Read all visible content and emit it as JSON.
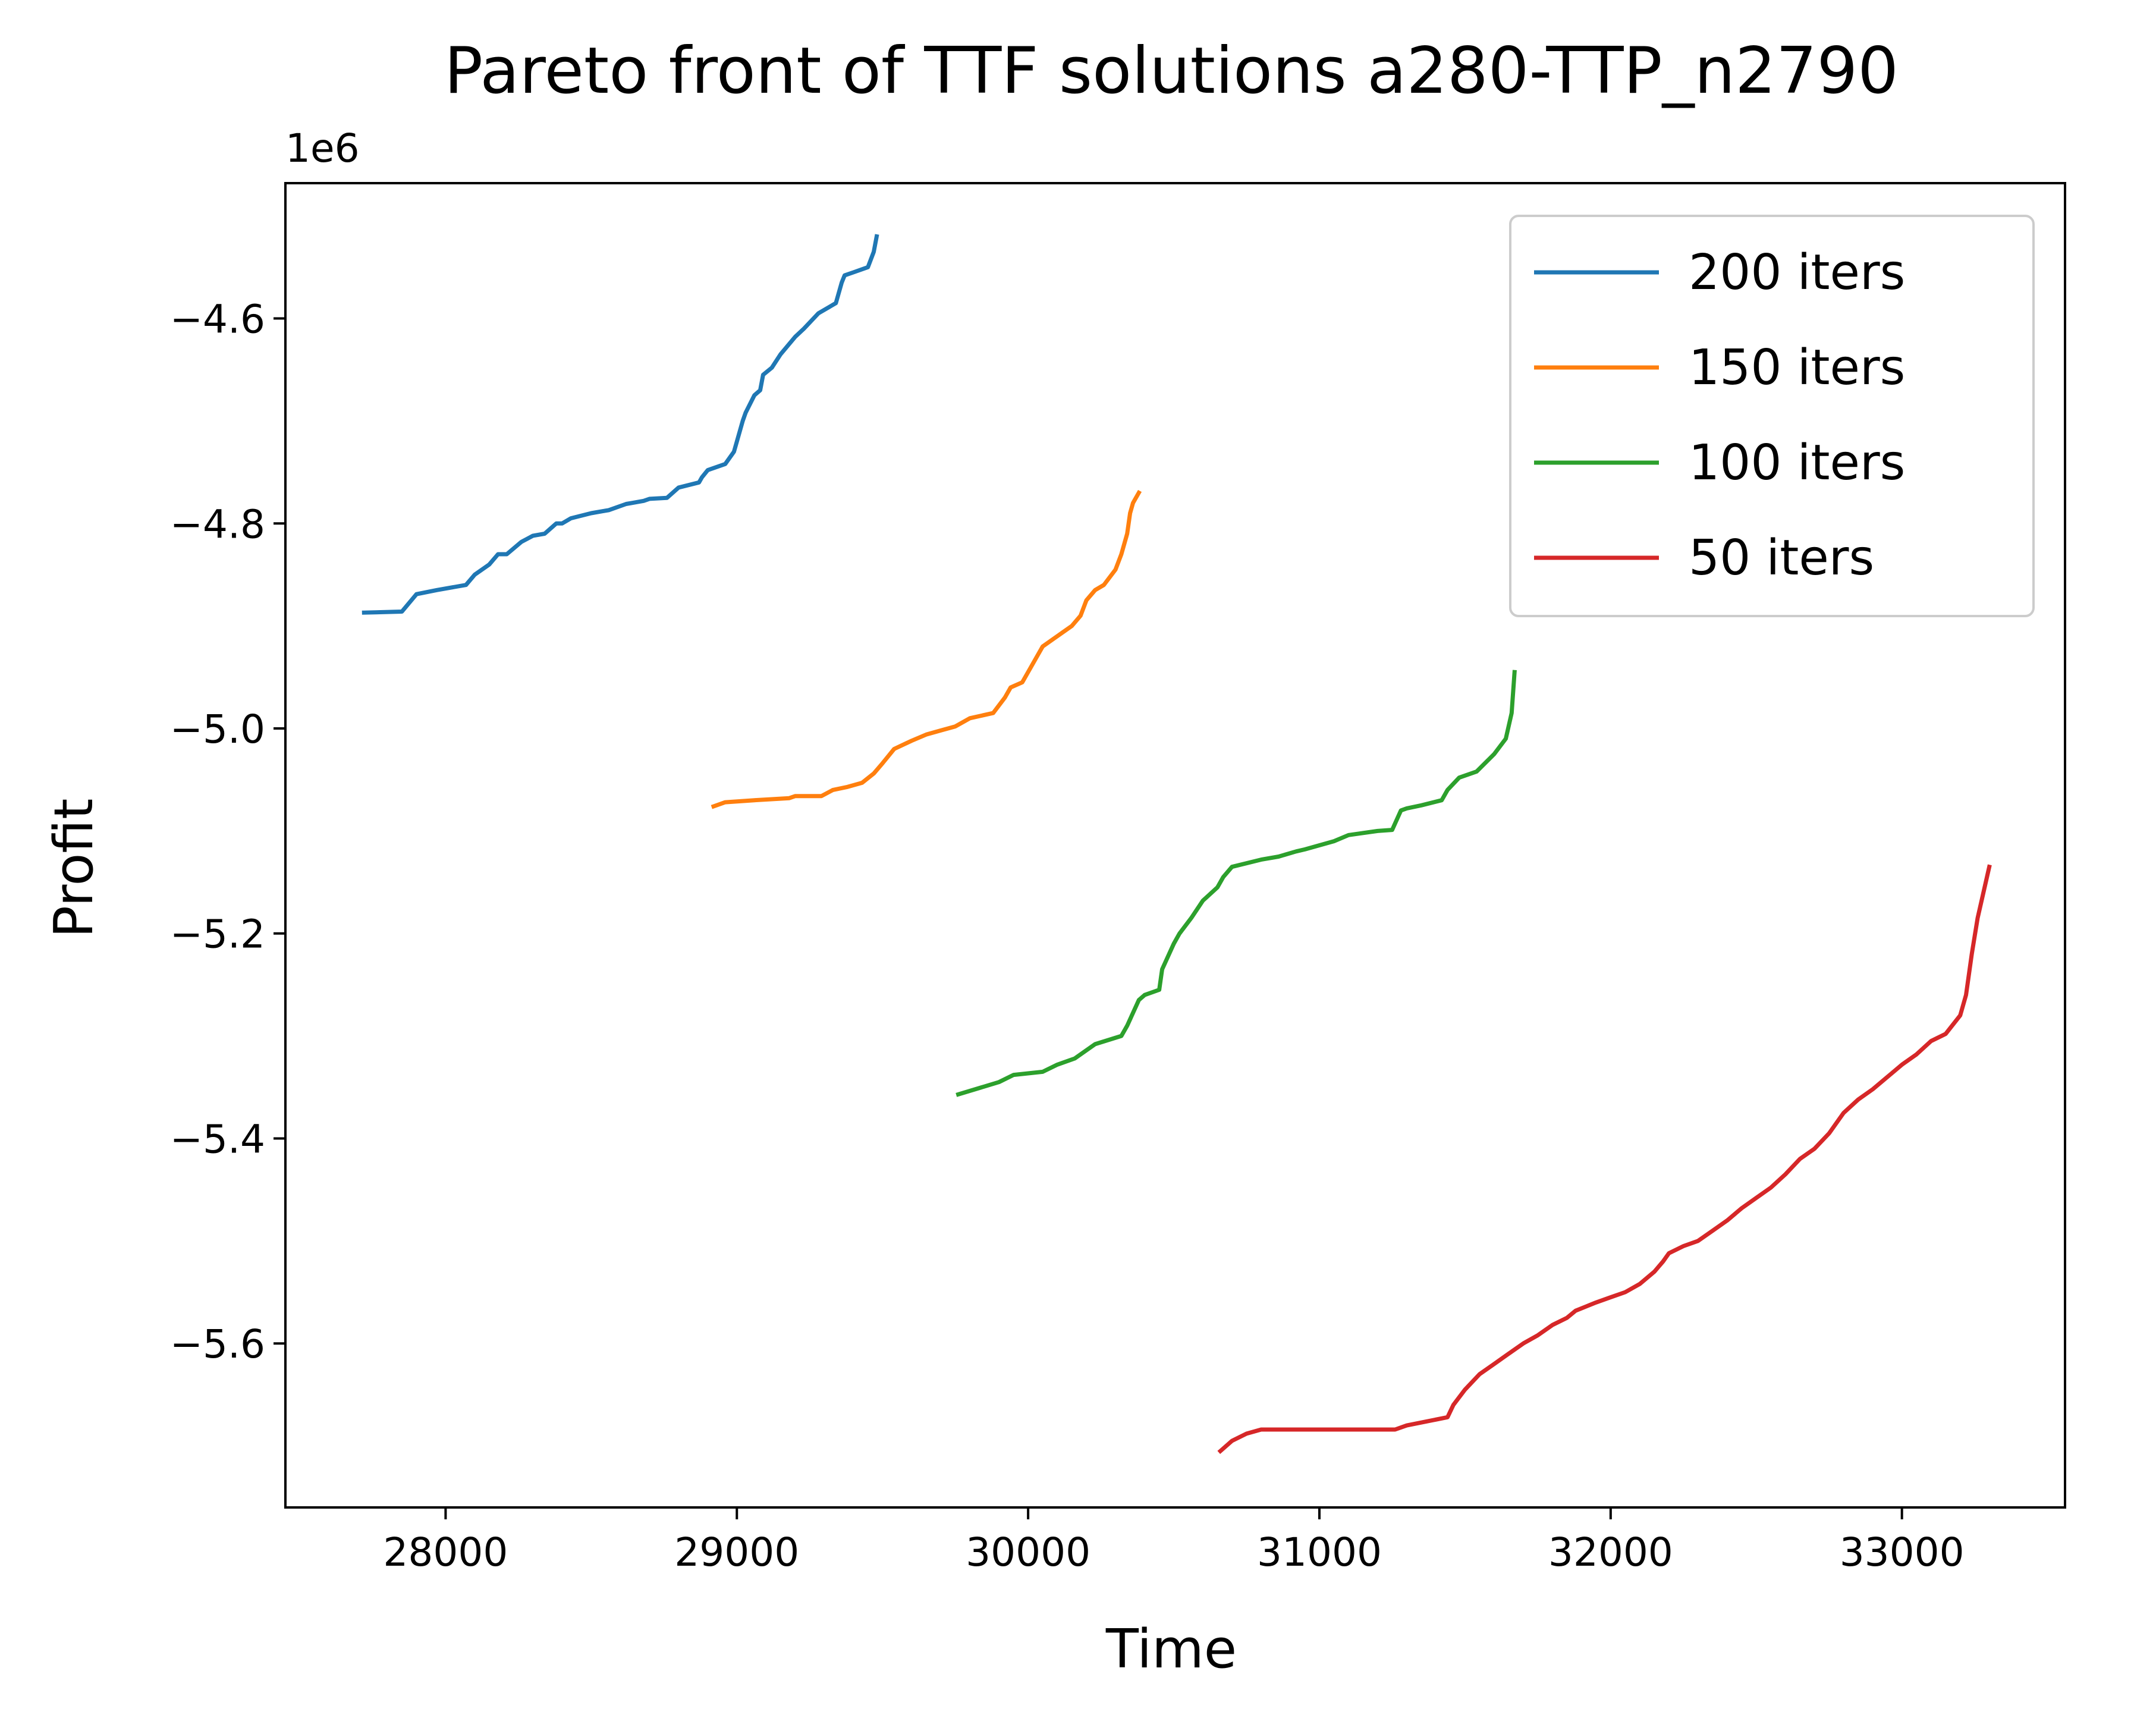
{
  "chart_data": {
    "type": "line",
    "title": "Pareto front of TTF solutions a280-TTP_n2790",
    "xlabel": "Time",
    "ylabel": "Profit",
    "y_offset_label": "1e6",
    "xlim": [
      27450,
      33560
    ],
    "ylim": [
      -5.76,
      -4.468
    ],
    "x_ticks": [
      28000,
      29000,
      30000,
      31000,
      32000,
      33000
    ],
    "x_tick_labels": [
      "28000",
      "29000",
      "30000",
      "31000",
      "32000",
      "33000"
    ],
    "y_ticks": [
      -4.6,
      -4.8,
      -5.0,
      -5.2,
      -5.4,
      -5.6
    ],
    "y_tick_labels": [
      "−4.6",
      "−4.8",
      "−5.0",
      "−5.2",
      "−5.4",
      "−5.6"
    ],
    "grid": false,
    "legend_position": "upper right",
    "series": [
      {
        "name": "200 iters",
        "color": "#1f77b4",
        "x": [
          27720,
          27850,
          27900,
          27970,
          28070,
          28100,
          28150,
          28180,
          28210,
          28260,
          28300,
          28340,
          28380,
          28400,
          28430,
          28500,
          28540,
          28560,
          28620,
          28640,
          28680,
          28700,
          28760,
          28800,
          28870,
          28880,
          28900,
          28960,
          28990,
          29000,
          29020,
          29030,
          29060,
          29080,
          29090,
          29120,
          29150,
          29200,
          29230,
          29280,
          29340,
          29360,
          29370,
          29400,
          29450,
          29470,
          29480
        ],
        "y": [
          -4.887,
          -4.886,
          -4.869,
          -4.865,
          -4.86,
          -4.85,
          -4.84,
          -4.83,
          -4.83,
          -4.818,
          -4.812,
          -4.81,
          -4.8,
          -4.8,
          -4.795,
          -4.79,
          -4.788,
          -4.787,
          -4.781,
          -4.78,
          -4.778,
          -4.776,
          -4.775,
          -4.765,
          -4.76,
          -4.755,
          -4.748,
          -4.742,
          -4.73,
          -4.72,
          -4.7,
          -4.692,
          -4.675,
          -4.67,
          -4.655,
          -4.648,
          -4.635,
          -4.618,
          -4.61,
          -4.595,
          -4.585,
          -4.565,
          -4.558,
          -4.555,
          -4.55,
          -4.535,
          -4.52
        ]
      },
      {
        "name": "150 iters",
        "color": "#ff7f0e",
        "x": [
          28920,
          28960,
          29060,
          29180,
          29200,
          29290,
          29330,
          29380,
          29430,
          29470,
          29500,
          29540,
          29600,
          29650,
          29700,
          29750,
          29800,
          29880,
          29920,
          29940,
          29980,
          30000,
          30030,
          30050,
          30100,
          30150,
          30180,
          30200,
          30230,
          30260,
          30300,
          30320,
          30340,
          30350,
          30360,
          30380
        ],
        "y": [
          -5.076,
          -5.072,
          -5.07,
          -5.068,
          -5.066,
          -5.066,
          -5.06,
          -5.057,
          -5.053,
          -5.044,
          -5.034,
          -5.02,
          -5.012,
          -5.006,
          -5.002,
          -4.998,
          -4.99,
          -4.985,
          -4.97,
          -4.96,
          -4.955,
          -4.945,
          -4.93,
          -4.92,
          -4.91,
          -4.9,
          -4.89,
          -4.875,
          -4.865,
          -4.86,
          -4.845,
          -4.83,
          -4.81,
          -4.79,
          -4.78,
          -4.77
        ]
      },
      {
        "name": "100 iters",
        "color": "#2ca02c",
        "x": [
          29760,
          29900,
          29950,
          30050,
          30100,
          30160,
          30230,
          30320,
          30340,
          30380,
          30400,
          30450,
          30460,
          30500,
          30520,
          30560,
          30600,
          30650,
          30670,
          30700,
          30800,
          30860,
          30920,
          30950,
          31000,
          31050,
          31100,
          31200,
          31250,
          31280,
          31300,
          31350,
          31420,
          31440,
          31480,
          31540,
          31600,
          31640,
          31660,
          31670
        ],
        "y": [
          -5.357,
          -5.345,
          -5.338,
          -5.335,
          -5.328,
          -5.322,
          -5.308,
          -5.3,
          -5.29,
          -5.265,
          -5.26,
          -5.255,
          -5.235,
          -5.21,
          -5.2,
          -5.185,
          -5.168,
          -5.155,
          -5.145,
          -5.135,
          -5.128,
          -5.125,
          -5.12,
          -5.118,
          -5.114,
          -5.11,
          -5.104,
          -5.1,
          -5.099,
          -5.08,
          -5.078,
          -5.075,
          -5.07,
          -5.06,
          -5.048,
          -5.042,
          -5.025,
          -5.01,
          -4.985,
          -4.945
        ]
      },
      {
        "name": "50 iters",
        "color": "#d62728",
        "x": [
          30660,
          30700,
          30750,
          30800,
          31000,
          31260,
          31300,
          31440,
          31460,
          31500,
          31550,
          31600,
          31650,
          31700,
          31750,
          31800,
          31850,
          31880,
          31950,
          32000,
          32050,
          32100,
          32150,
          32180,
          32200,
          32250,
          32300,
          32350,
          32400,
          32450,
          32500,
          32550,
          32600,
          32650,
          32700,
          32750,
          32800,
          32850,
          32900,
          32950,
          33000,
          33050,
          33100,
          33150,
          33200,
          33220,
          33240,
          33260,
          33280,
          33300
        ],
        "y": [
          -5.705,
          -5.695,
          -5.688,
          -5.684,
          -5.684,
          -5.684,
          -5.68,
          -5.672,
          -5.66,
          -5.645,
          -5.63,
          -5.62,
          -5.61,
          -5.6,
          -5.592,
          -5.582,
          -5.575,
          -5.568,
          -5.56,
          -5.555,
          -5.55,
          -5.542,
          -5.53,
          -5.52,
          -5.512,
          -5.505,
          -5.5,
          -5.49,
          -5.48,
          -5.468,
          -5.458,
          -5.448,
          -5.435,
          -5.42,
          -5.41,
          -5.395,
          -5.375,
          -5.362,
          -5.352,
          -5.34,
          -5.328,
          -5.318,
          -5.305,
          -5.298,
          -5.28,
          -5.26,
          -5.22,
          -5.185,
          -5.16,
          -5.135
        ]
      }
    ]
  }
}
